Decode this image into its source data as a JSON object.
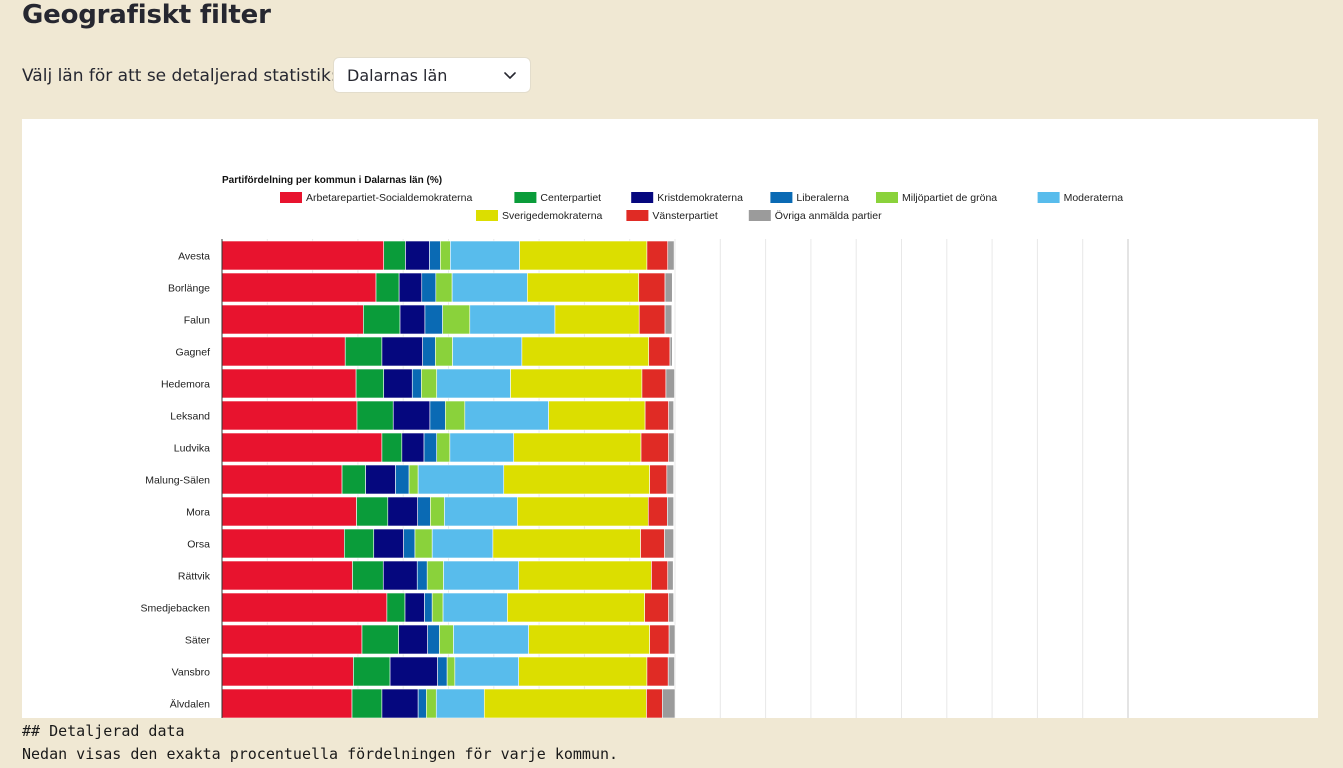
{
  "page": {
    "title": "Geografiskt filter",
    "select_label": "Välj län för att se detaljerad statistik::",
    "select_value": "Dalarnas län"
  },
  "markdown": {
    "heading": "## Detaljerad data",
    "body": "Nedan visas den exakta procentuella fördelningen för varje kommun."
  },
  "chart_data": {
    "type": "bar",
    "orientation": "horizontal",
    "stacked": true,
    "title": "Partifördelning per kommun i Dalarnas län (%)",
    "legend_position": "top",
    "xlim": [
      0,
      200
    ],
    "grid": true,
    "categories": [
      "Avesta",
      "Borlänge",
      "Falun",
      "Gagnef",
      "Hedemora",
      "Leksand",
      "Ludvika",
      "Malung-Sälen",
      "Mora",
      "Orsa",
      "Rättvik",
      "Smedjebacken",
      "Säter",
      "Vansbro",
      "Älvdalen"
    ],
    "series": [
      {
        "name": "Arbetarepartiet-Socialdemokraterna",
        "color": "#e8132e",
        "values": [
          35.7,
          34.0,
          31.2,
          27.2,
          29.6,
          29.8,
          35.3,
          26.5,
          29.7,
          27.0,
          28.8,
          36.4,
          30.9,
          29.0,
          28.7
        ]
      },
      {
        "name": "Centerpartiet",
        "color": "#0a9c3a",
        "values": [
          4.8,
          5.1,
          8.1,
          8.1,
          6.1,
          8.0,
          4.4,
          5.2,
          6.9,
          6.5,
          6.8,
          4.0,
          8.1,
          8.1,
          6.6
        ]
      },
      {
        "name": "Kristdemokraterna",
        "color": "#05077e",
        "values": [
          5.3,
          5.0,
          5.5,
          9.0,
          6.3,
          8.1,
          4.9,
          6.6,
          6.6,
          6.6,
          7.5,
          4.3,
          6.4,
          10.5,
          8.0
        ]
      },
      {
        "name": "Liberalerna",
        "color": "#0a6ab4",
        "values": [
          2.4,
          3.1,
          3.9,
          2.8,
          2.0,
          3.4,
          2.8,
          3.0,
          2.8,
          2.5,
          2.2,
          1.7,
          2.6,
          2.1,
          1.8
        ]
      },
      {
        "name": "Miljöpartiet de gröna",
        "color": "#8ad23b",
        "values": [
          2.2,
          3.6,
          6.0,
          3.8,
          3.4,
          4.3,
          2.9,
          2.0,
          3.1,
          3.8,
          3.6,
          2.4,
          3.1,
          1.7,
          2.2
        ]
      },
      {
        "name": "Moderaterna",
        "color": "#58bcec",
        "values": [
          15.3,
          16.6,
          18.8,
          15.3,
          16.3,
          18.5,
          14.1,
          18.9,
          16.1,
          13.4,
          16.6,
          14.2,
          16.6,
          14.1,
          10.6
        ]
      },
      {
        "name": "Sverigedemokraterna",
        "color": "#dcde00",
        "values": [
          28.1,
          24.6,
          18.6,
          28.0,
          29.0,
          21.3,
          28.1,
          32.2,
          28.9,
          32.6,
          29.3,
          30.3,
          26.7,
          28.3,
          35.8
        ]
      },
      {
        "name": "Vänsterpartiet",
        "color": "#e02b25",
        "values": [
          4.6,
          5.8,
          5.7,
          4.7,
          5.3,
          5.2,
          6.1,
          3.8,
          4.2,
          5.3,
          3.6,
          5.3,
          4.3,
          4.7,
          3.5
        ]
      },
      {
        "name": "Övriga anmälda partier",
        "color": "#9b9b9b",
        "values": [
          1.4,
          1.6,
          1.5,
          0.5,
          1.9,
          1.1,
          1.2,
          1.5,
          1.4,
          2.0,
          1.2,
          1.1,
          1.3,
          1.4,
          2.8
        ]
      }
    ]
  }
}
